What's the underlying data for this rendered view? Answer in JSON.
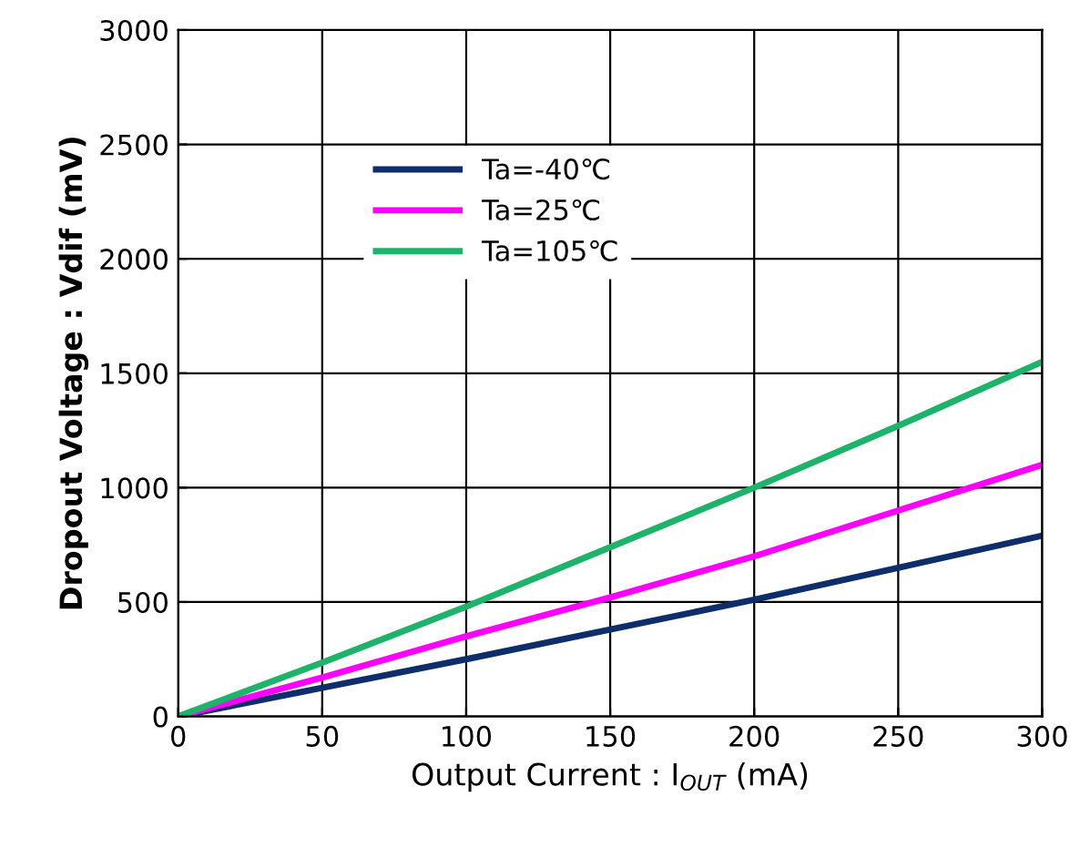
{
  "chart_data": {
    "type": "line",
    "xlabel": "Output Current : I$_{OUT}$ (mA)",
    "ylabel": "Dropout Voltage : Vdif (mV)",
    "x": [
      0,
      50,
      100,
      150,
      200,
      250,
      300
    ],
    "series": [
      {
        "name": "Ta=-40℃",
        "color": "#0d2d6b",
        "values": [
          0,
          125,
          250,
          380,
          510,
          650,
          790
        ]
      },
      {
        "name": "Ta=25℃",
        "color": "#ff00ff",
        "values": [
          0,
          170,
          350,
          520,
          700,
          900,
          1100
        ]
      },
      {
        "name": "Ta=105℃",
        "color": "#1db36b",
        "values": [
          0,
          235,
          480,
          740,
          1000,
          1270,
          1550
        ]
      }
    ],
    "xlim": [
      0,
      300
    ],
    "xticks": [
      0,
      50,
      100,
      150,
      200,
      250,
      300
    ],
    "ylim": [
      0,
      3000
    ],
    "yticks": [
      0,
      500,
      1000,
      1500,
      2000,
      2500,
      3000
    ],
    "grid": true,
    "legend": "top left",
    "marker": "none",
    "line_style": "solid"
  }
}
